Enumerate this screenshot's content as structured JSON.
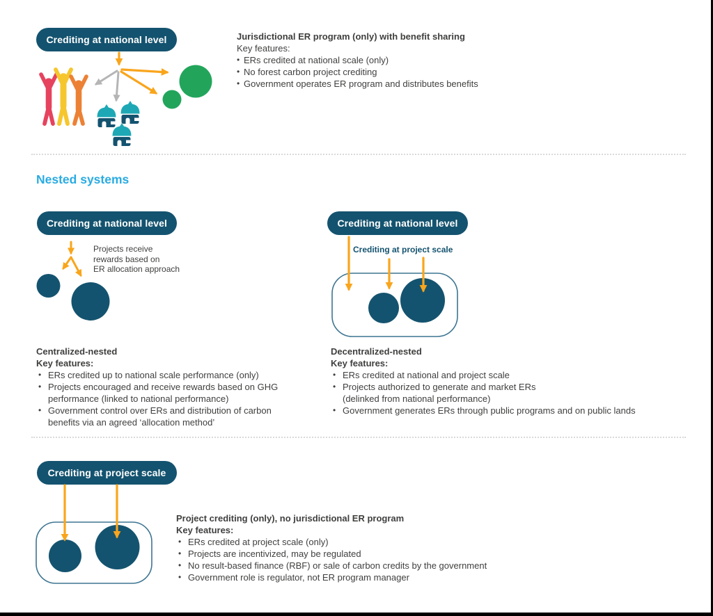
{
  "colors": {
    "teal_dark": "#14536F",
    "teal_container_border": "#3D7591",
    "cyan_heading": "#29ABE2",
    "arrow_orange": "#F9A51C",
    "arrow_gray": "#B5B5B5",
    "green_circle": "#22A55B",
    "body_text": "#3F3F3E",
    "person_red": "#E6435E",
    "person_yellow": "#F6C62E",
    "person_orange": "#EC8135",
    "hut_roof_teal": "#1EA8B5"
  },
  "icons": {
    "people": "people-celebrating-icon",
    "huts": "village-huts-icon",
    "green_circles": "er-program-circles",
    "project_circles": "project-circles",
    "arrows": "flow-arrows"
  },
  "sections": {
    "jurisdictional": {
      "pill": "Crediting at national level",
      "title": "Jurisdictional ER program (only) with benefit sharing",
      "key_features_label": "Key features:",
      "bullets": [
        "ERs credited at national scale (only)",
        "No forest carbon project crediting",
        "Government operates ER program and distributes benefits"
      ]
    },
    "nested_heading": "Nested systems",
    "centralized": {
      "pill": "Crediting at national level",
      "arrow_note": "Projects receive\nrewards based on\nER allocation approach",
      "title": "Centralized-nested",
      "key_features_label": "Key features:",
      "bullets": [
        "ERs credited up to national scale performance (only)",
        "Projects encouraged and receive rewards based on GHG\nperformance (linked to national performance)",
        "Government control over ERs and distribution of carbon\nbenefits via an agreed ‘allocation method’"
      ]
    },
    "decentralized": {
      "pill": "Crediting at national level",
      "project_scale_label": "Crediting at project scale",
      "title": "Decentralized-nested",
      "key_features_label": "Key features:",
      "bullets": [
        "ERs credited at national and project scale",
        "Projects authorized to generate and market ERs\n(delinked from national performance)",
        "Government generates ERs through public programs and on public lands"
      ]
    },
    "project": {
      "pill": "Crediting at project scale",
      "title": "Project crediting (only), no jurisdictional ER program",
      "key_features_label": "Key features:",
      "bullets": [
        "ERs credited at project scale (only)",
        "Projects are incentivized, may be regulated",
        "No result-based finance (RBF) or sale of carbon credits by the government",
        "Government role is regulator, not ER program manager"
      ]
    }
  }
}
